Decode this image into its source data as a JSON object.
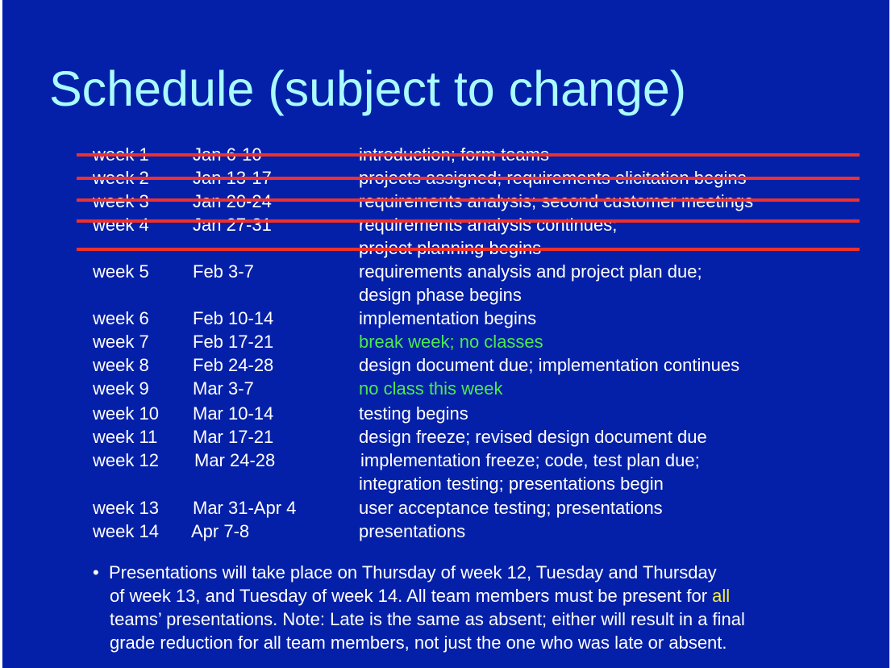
{
  "title": "Schedule (subject to change)",
  "colors": {
    "background": "#0520a8",
    "title": "#a9fbff",
    "text": "#ffffff",
    "green_note": "#4de84f",
    "strike_line": "#f0302a",
    "highlight": "#f7f03a"
  },
  "schedule": [
    {
      "week": "week 1",
      "dates": "Jan 6-10",
      "activity": "introduction; form teams",
      "crossed_out": true
    },
    {
      "week": "week 2",
      "dates": "Jan 13-17",
      "activity": "projects assigned; requirements elicitation begins",
      "crossed_out": true
    },
    {
      "week": "week 3",
      "dates": "Jan 20-24",
      "activity": "requirements analysis; second customer meetings",
      "crossed_out": true
    },
    {
      "week": "week 4",
      "dates": "Jan 27-31",
      "activity": "requirements analysis continues;",
      "activity_cont": "project planning begins",
      "crossed_out": true
    },
    {
      "week": "week 5",
      "dates": "Feb 3-7",
      "activity": "requirements analysis and project plan due;",
      "activity_cont": "design phase begins"
    },
    {
      "week": "week 6",
      "dates": "Feb 10-14",
      "activity": "implementation begins"
    },
    {
      "week": "week 7",
      "dates": "Feb 17-21",
      "activity": "break week; no classes"
    },
    {
      "week": "week 8",
      "dates": "Feb 24-28",
      "activity": "design document due; implementation continues"
    },
    {
      "week": "week 9",
      "dates": "Mar 3-7",
      "activity": "no class this week"
    },
    {
      "week": "week 10",
      "dates": "Mar 10-14",
      "activity": "testing begins"
    },
    {
      "week": "week 11",
      "dates": "Mar 17-21",
      "activity": "design freeze; revised design document due"
    },
    {
      "week": "week 12",
      "dates": "Mar 24-28",
      "activity": "implementation freeze; code, test plan due;",
      "activity_cont": "integration testing; presentations begin"
    },
    {
      "week": "week 13",
      "dates": "Mar 31-Apr 4",
      "activity": "user acceptance testing; presentations"
    },
    {
      "week": "week 14",
      "dates": "Apr 7-8",
      "activity": "presentations"
    }
  ],
  "note": {
    "bullet": "•",
    "line1": "Presentations will take place on Thursday of week 12, Tuesday and Thursday",
    "line2_before": "of week 13, and Tuesday of week 14.  All team members must be present for ",
    "line2_highlight": "all",
    "line3": "teams’ presentations.  Note: Late is the same as absent; either will result in a final",
    "line4": "grade reduction for all team members, not just the one who was late or absent."
  }
}
